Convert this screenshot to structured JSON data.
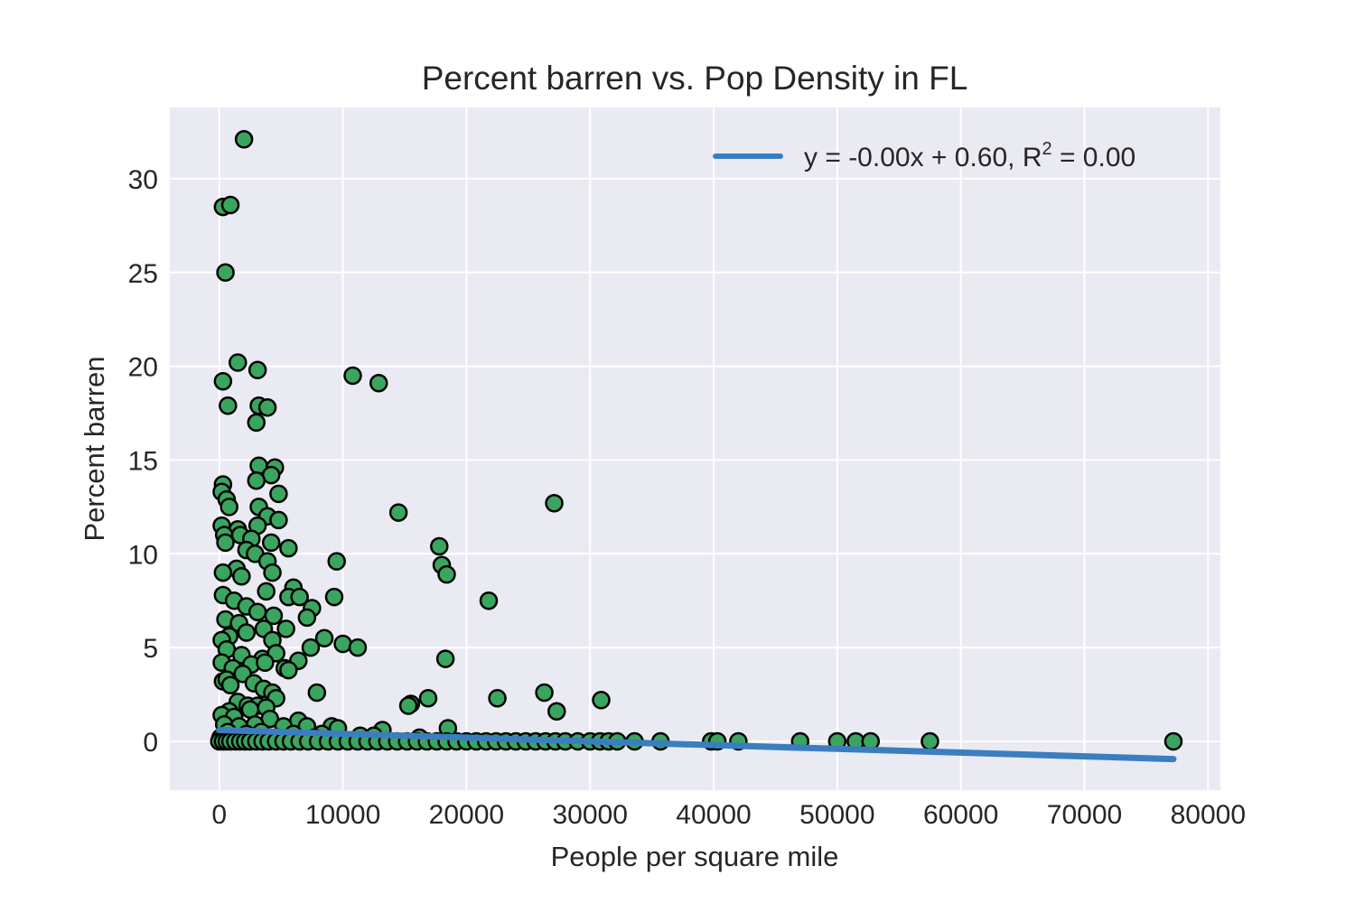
{
  "chart_data": {
    "type": "scatter",
    "title": "Percent barren vs. Pop Density in FL",
    "xlabel": "People per square mile",
    "ylabel": "Percent barren",
    "xlim": [
      -4000,
      81000
    ],
    "ylim": [
      -2.6,
      33.8
    ],
    "xticks": [
      0,
      10000,
      20000,
      30000,
      40000,
      50000,
      60000,
      70000,
      80000
    ],
    "yticks": [
      0,
      5,
      10,
      15,
      20,
      25,
      30
    ],
    "grid": true,
    "legend_position": "upper right",
    "colors": {
      "background": "#eaeaf2",
      "grid": "#ffffff",
      "point_fill": "#3aa55e",
      "point_edge": "#000000",
      "fit_line": "#3a7ebf"
    },
    "fit": {
      "label_prefix": "y = -0.00x + 0.60, R",
      "label_sup": "2",
      "label_suffix": " = 0.00",
      "slope": -2e-05,
      "intercept": 0.6,
      "x_range": [
        0,
        77200
      ]
    },
    "points": [
      [
        2000,
        32.1
      ],
      [
        300,
        28.5
      ],
      [
        900,
        28.6
      ],
      [
        500,
        25.0
      ],
      [
        1500,
        20.2
      ],
      [
        3100,
        19.8
      ],
      [
        300,
        19.2
      ],
      [
        700,
        17.9
      ],
      [
        3200,
        17.9
      ],
      [
        3900,
        17.8
      ],
      [
        3000,
        17.0
      ],
      [
        10800,
        19.5
      ],
      [
        12900,
        19.1
      ],
      [
        3200,
        14.7
      ],
      [
        4500,
        14.6
      ],
      [
        4200,
        14.2
      ],
      [
        3000,
        13.9
      ],
      [
        300,
        13.7
      ],
      [
        200,
        13.3
      ],
      [
        4800,
        13.2
      ],
      [
        600,
        12.9
      ],
      [
        800,
        12.5
      ],
      [
        3200,
        12.5
      ],
      [
        3900,
        12.0
      ],
      [
        4800,
        11.8
      ],
      [
        14500,
        12.2
      ],
      [
        27100,
        12.7
      ],
      [
        200,
        11.5
      ],
      [
        1500,
        11.3
      ],
      [
        3100,
        11.5
      ],
      [
        400,
        11.0
      ],
      [
        1700,
        11.0
      ],
      [
        2600,
        10.8
      ],
      [
        500,
        10.6
      ],
      [
        4200,
        10.6
      ],
      [
        5600,
        10.3
      ],
      [
        2200,
        10.2
      ],
      [
        2900,
        10.0
      ],
      [
        3900,
        9.6
      ],
      [
        4300,
        9.0
      ],
      [
        9500,
        9.6
      ],
      [
        17800,
        10.4
      ],
      [
        18000,
        9.4
      ],
      [
        18400,
        8.9
      ],
      [
        1400,
        9.2
      ],
      [
        300,
        9.0
      ],
      [
        1800,
        8.8
      ],
      [
        3800,
        8.0
      ],
      [
        6000,
        8.2
      ],
      [
        300,
        7.8
      ],
      [
        1200,
        7.5
      ],
      [
        5600,
        7.7
      ],
      [
        6500,
        7.7
      ],
      [
        9300,
        7.7
      ],
      [
        2200,
        7.2
      ],
      [
        7500,
        7.1
      ],
      [
        3100,
        6.9
      ],
      [
        4400,
        6.7
      ],
      [
        7100,
        6.6
      ],
      [
        500,
        6.5
      ],
      [
        1600,
        6.3
      ],
      [
        3600,
        6.0
      ],
      [
        5400,
        6.0
      ],
      [
        2200,
        5.8
      ],
      [
        800,
        5.6
      ],
      [
        4300,
        5.4
      ],
      [
        8500,
        5.5
      ],
      [
        200,
        5.4
      ],
      [
        10000,
        5.2
      ],
      [
        11200,
        5.0
      ],
      [
        7400,
        5.0
      ],
      [
        600,
        4.9
      ],
      [
        1800,
        4.6
      ],
      [
        3500,
        4.4
      ],
      [
        4600,
        4.7
      ],
      [
        6400,
        4.3
      ],
      [
        200,
        4.2
      ],
      [
        1100,
        3.9
      ],
      [
        2600,
        4.1
      ],
      [
        3700,
        4.2
      ],
      [
        5300,
        3.9
      ],
      [
        5600,
        3.8
      ],
      [
        1900,
        3.6
      ],
      [
        300,
        3.2
      ],
      [
        600,
        3.3
      ],
      [
        900,
        3.0
      ],
      [
        2800,
        3.1
      ],
      [
        3600,
        2.8
      ],
      [
        4300,
        2.6
      ],
      [
        7900,
        2.6
      ],
      [
        18300,
        4.4
      ],
      [
        21800,
        7.5
      ],
      [
        15500,
        2.0
      ],
      [
        15300,
        1.9
      ],
      [
        16900,
        2.3
      ],
      [
        22500,
        2.3
      ],
      [
        26300,
        2.6
      ],
      [
        27300,
        1.6
      ],
      [
        30900,
        2.2
      ],
      [
        4600,
        2.3
      ],
      [
        1500,
        2.1
      ],
      [
        2300,
        1.9
      ],
      [
        3100,
        1.9
      ],
      [
        3800,
        1.8
      ],
      [
        800,
        1.6
      ],
      [
        2500,
        1.7
      ],
      [
        200,
        1.4
      ],
      [
        1200,
        1.3
      ],
      [
        4100,
        1.2
      ],
      [
        6400,
        1.1
      ],
      [
        400,
        0.9
      ],
      [
        1600,
        0.8
      ],
      [
        2900,
        0.9
      ],
      [
        5200,
        0.8
      ],
      [
        7100,
        0.8
      ],
      [
        9100,
        0.8
      ],
      [
        9600,
        0.7
      ],
      [
        13200,
        0.6
      ],
      [
        18500,
        0.7
      ],
      [
        700,
        0.5
      ],
      [
        2200,
        0.4
      ],
      [
        3400,
        0.5
      ],
      [
        6000,
        0.4
      ],
      [
        8300,
        0.4
      ],
      [
        11400,
        0.3
      ],
      [
        12500,
        0.3
      ],
      [
        16200,
        0.2
      ],
      [
        100,
        0.2
      ],
      [
        1100,
        0.1
      ],
      [
        4700,
        0.2
      ],
      [
        7700,
        0.2
      ],
      [
        0,
        0.0
      ],
      [
        300,
        0.0
      ],
      [
        600,
        0.0
      ],
      [
        900,
        0.0
      ],
      [
        1300,
        0.0
      ],
      [
        1700,
        0.0
      ],
      [
        2100,
        0.0
      ],
      [
        2500,
        0.0
      ],
      [
        3000,
        0.0
      ],
      [
        3500,
        0.0
      ],
      [
        4000,
        0.0
      ],
      [
        4600,
        0.0
      ],
      [
        5200,
        0.0
      ],
      [
        5800,
        0.0
      ],
      [
        6500,
        0.0
      ],
      [
        7200,
        0.0
      ],
      [
        8000,
        0.0
      ],
      [
        8800,
        0.0
      ],
      [
        9600,
        0.0
      ],
      [
        10400,
        0.0
      ],
      [
        11200,
        0.0
      ],
      [
        12000,
        0.0
      ],
      [
        12800,
        0.0
      ],
      [
        13600,
        0.0
      ],
      [
        14400,
        0.0
      ],
      [
        15200,
        0.0
      ],
      [
        16000,
        0.0
      ],
      [
        16800,
        0.0
      ],
      [
        17600,
        0.0
      ],
      [
        18400,
        0.0
      ],
      [
        19200,
        0.0
      ],
      [
        20000,
        0.0
      ],
      [
        20800,
        0.0
      ],
      [
        21600,
        0.0
      ],
      [
        22400,
        0.0
      ],
      [
        23200,
        0.0
      ],
      [
        24000,
        0.0
      ],
      [
        24800,
        0.0
      ],
      [
        25600,
        0.0
      ],
      [
        26400,
        0.0
      ],
      [
        27200,
        0.0
      ],
      [
        28000,
        0.0
      ],
      [
        29000,
        0.0
      ],
      [
        30000,
        0.0
      ],
      [
        30800,
        0.0
      ],
      [
        31500,
        0.0
      ],
      [
        32200,
        0.0
      ],
      [
        33600,
        0.0
      ],
      [
        35700,
        0.0
      ],
      [
        39800,
        0.0
      ],
      [
        40300,
        0.0
      ],
      [
        42000,
        0.0
      ],
      [
        47000,
        0.0
      ],
      [
        50000,
        0.0
      ],
      [
        51500,
        0.0
      ],
      [
        52700,
        0.0
      ],
      [
        57500,
        0.0
      ],
      [
        77200,
        0.0
      ]
    ]
  }
}
